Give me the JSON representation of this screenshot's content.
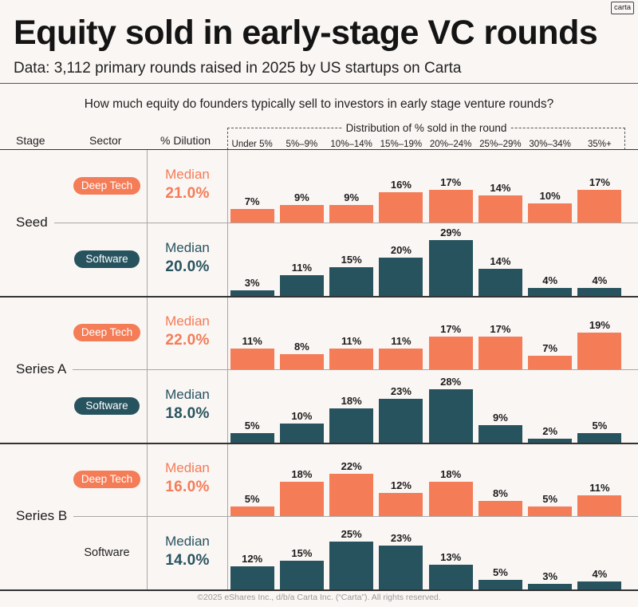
{
  "brand": {
    "logo": "carta"
  },
  "header": {
    "title": "Equity sold in early-stage VC rounds",
    "subtitle": "Data: 3,112 primary rounds raised in 2025 by US startups on Carta"
  },
  "footer": {
    "copyright": "©2025 eShares Inc., d/b/a Carta Inc. (“Carta”). All rights reserved."
  },
  "colors": {
    "background": "#faf6f4",
    "text": "#1c1c1c"
  },
  "chart_data": {
    "type": "bar",
    "title": "How much equity do founders typically sell to investors in early stage venture rounds?",
    "xlabel": "Distribution of % sold in the round",
    "columns": {
      "stage": "Stage",
      "sector": "Sector",
      "dilution": "% Dilution"
    },
    "categories": [
      "Under 5%",
      "5%–9%",
      "10%–14%",
      "15%–19%",
      "20%–24%",
      "25%–29%",
      "30%–34%",
      "35%+"
    ],
    "unit": "%",
    "median_label": "Median",
    "ylim": [
      0,
      30
    ],
    "stages": [
      {
        "label": "Seed",
        "series": [
          {
            "sector": "Deep Tech",
            "pill": true,
            "color": "#f47c57",
            "median": "21.0%",
            "values": [
              7,
              9,
              9,
              16,
              17,
              14,
              10,
              17
            ]
          },
          {
            "sector": "Software",
            "pill": true,
            "color": "#27535f",
            "median": "20.0%",
            "values": [
              3,
              11,
              15,
              20,
              29,
              14,
              4,
              4
            ]
          }
        ]
      },
      {
        "label": "Series A",
        "series": [
          {
            "sector": "Deep Tech",
            "pill": true,
            "color": "#f47c57",
            "median": "22.0%",
            "values": [
              11,
              8,
              11,
              11,
              17,
              17,
              7,
              19
            ]
          },
          {
            "sector": "Software",
            "pill": true,
            "color": "#27535f",
            "median": "18.0%",
            "values": [
              5,
              10,
              18,
              23,
              28,
              9,
              2,
              5
            ]
          }
        ]
      },
      {
        "label": "Series B",
        "series": [
          {
            "sector": "Deep Tech",
            "pill": true,
            "color": "#f47c57",
            "median": "16.0%",
            "values": [
              5,
              18,
              22,
              12,
              18,
              8,
              5,
              11
            ]
          },
          {
            "sector": "Software",
            "pill": false,
            "color": "#27535f",
            "median": "14.0%",
            "values": [
              12,
              15,
              25,
              23,
              13,
              5,
              3,
              4
            ]
          }
        ]
      }
    ]
  }
}
